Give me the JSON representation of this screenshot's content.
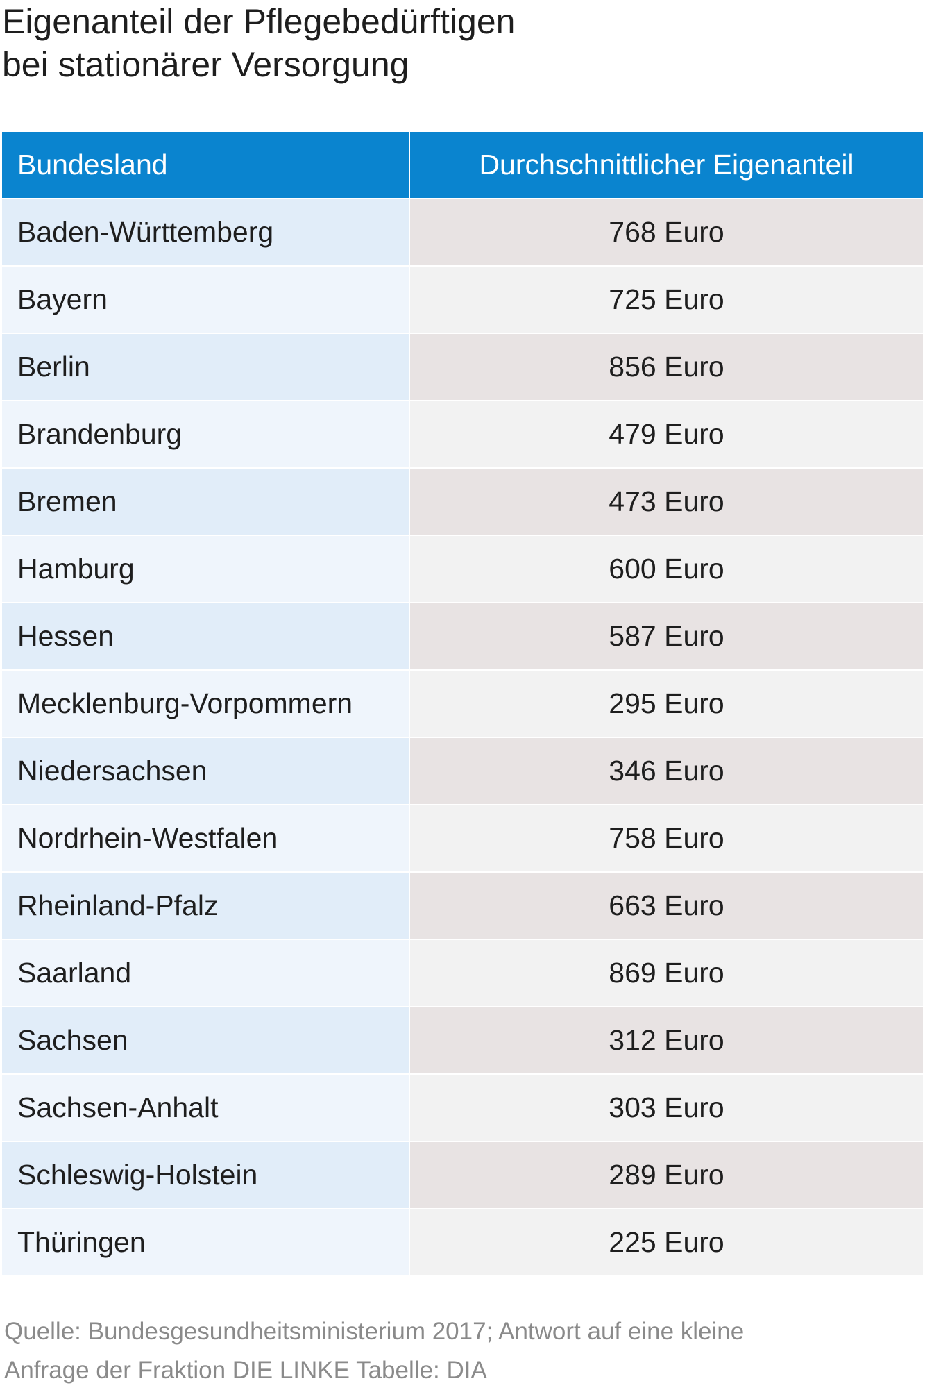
{
  "title": {
    "line1": "Eigenanteil der Pflegebedürftigen",
    "line2": "bei stationärer Versorgung"
  },
  "table": {
    "headers": [
      "Bundesland",
      "Durchschnittlicher Eigenanteil"
    ]
  },
  "chart_data": {
    "type": "table",
    "columns": [
      "Bundesland",
      "Durchschnittlicher Eigenanteil"
    ],
    "unit": "Euro",
    "rows": [
      {
        "land": "Baden-Württemberg",
        "value": 768,
        "label": "768 Euro"
      },
      {
        "land": "Bayern",
        "value": 725,
        "label": "725 Euro"
      },
      {
        "land": "Berlin",
        "value": 856,
        "label": "856 Euro"
      },
      {
        "land": "Brandenburg",
        "value": 479,
        "label": "479 Euro"
      },
      {
        "land": "Bremen",
        "value": 473,
        "label": "473 Euro"
      },
      {
        "land": "Hamburg",
        "value": 600,
        "label": "600 Euro"
      },
      {
        "land": "Hessen",
        "value": 587,
        "label": "587 Euro"
      },
      {
        "land": "Mecklenburg-Vorpommern",
        "value": 295,
        "label": "295 Euro"
      },
      {
        "land": "Niedersachsen",
        "value": 346,
        "label": "346 Euro"
      },
      {
        "land": "Nordrhein-Westfalen",
        "value": 758,
        "label": "758 Euro"
      },
      {
        "land": "Rheinland-Pfalz",
        "value": 663,
        "label": "663 Euro"
      },
      {
        "land": "Saarland",
        "value": 869,
        "label": "869 Euro"
      },
      {
        "land": "Sachsen",
        "value": 312,
        "label": "312 Euro"
      },
      {
        "land": "Sachsen-Anhalt",
        "value": 303,
        "label": "303 Euro"
      },
      {
        "land": "Schleswig-Holstein",
        "value": 289,
        "label": "289 Euro"
      },
      {
        "land": "Thüringen",
        "value": 225,
        "label": "225 Euro"
      }
    ]
  },
  "source": {
    "line1": "Quelle: Bundesgesundheitsministerium 2017; Antwort auf eine kleine",
    "line2": "Anfrage der Fraktion DIE LINKE  Tabelle: DIA"
  },
  "colors": {
    "header_bg": "#0a84cf",
    "row_land_odd": "#e1edf9",
    "row_land_even": "#eff5fc",
    "row_val_odd": "#e8e3e3",
    "row_val_even": "#f2f2f2"
  }
}
